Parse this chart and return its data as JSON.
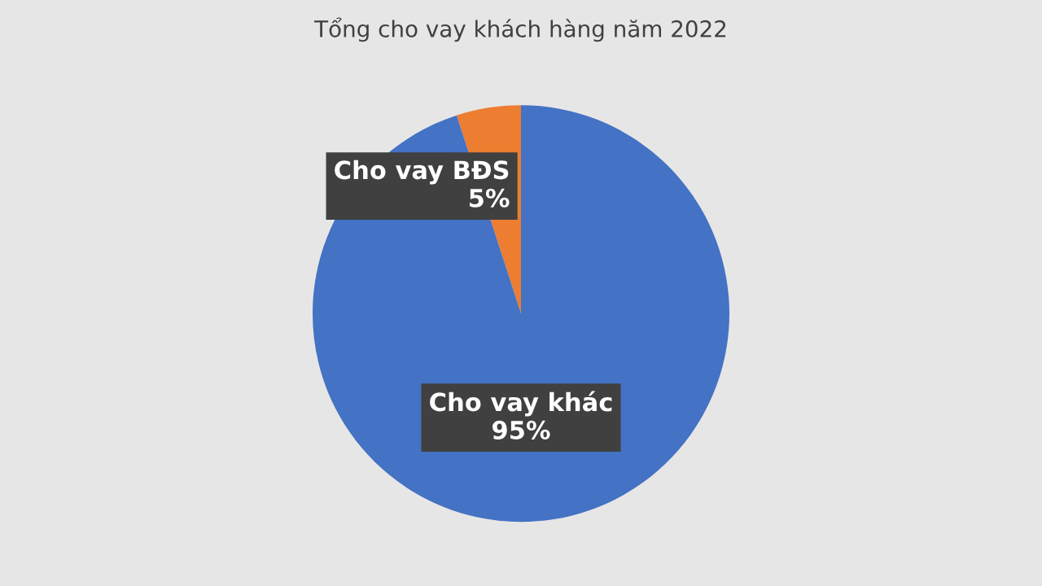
{
  "chart_data": {
    "type": "pie",
    "title": "Tổng cho vay khách hàng năm 2022",
    "categories": [
      "Cho vay BĐS",
      "Cho vay khác"
    ],
    "values": [
      5,
      95
    ],
    "value_labels": [
      "5%",
      "95%"
    ],
    "colors": [
      "#ed7d31",
      "#4472c4"
    ],
    "legend": false
  }
}
